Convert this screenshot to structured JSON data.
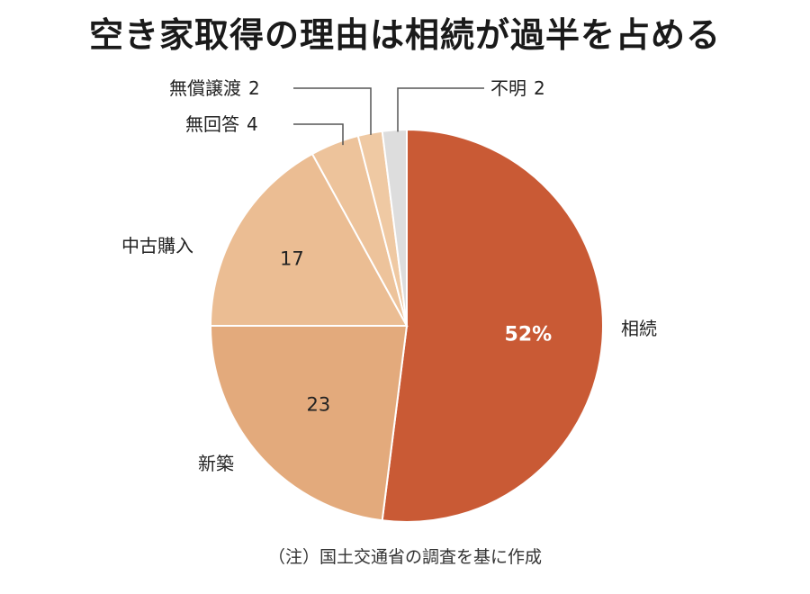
{
  "chart_data": {
    "type": "pie",
    "title": "空き家取得の理由は相続が過半を占める",
    "note": "（注）国土交通省の調査を基に作成",
    "slices": [
      {
        "label": "相続",
        "value": 52,
        "value_label": "52%",
        "color": "#c95a35",
        "label_style": "inside-white"
      },
      {
        "label": "新築",
        "value": 23,
        "value_label": "23",
        "color": "#e3aa7c",
        "label_style": "inside"
      },
      {
        "label": "中古購入",
        "value": 17,
        "value_label": "17",
        "color": "#ebbd93",
        "label_style": "inside"
      },
      {
        "label": "無回答",
        "value": 4,
        "value_label": "4",
        "color": "#edc39b",
        "label_style": "callout"
      },
      {
        "label": "無償譲渡",
        "value": 2,
        "value_label": "2",
        "color": "#efc9a3",
        "label_style": "callout"
      },
      {
        "label": "不明",
        "value": 2,
        "value_label": "2",
        "color": "#dddddd",
        "label_style": "callout"
      }
    ]
  }
}
